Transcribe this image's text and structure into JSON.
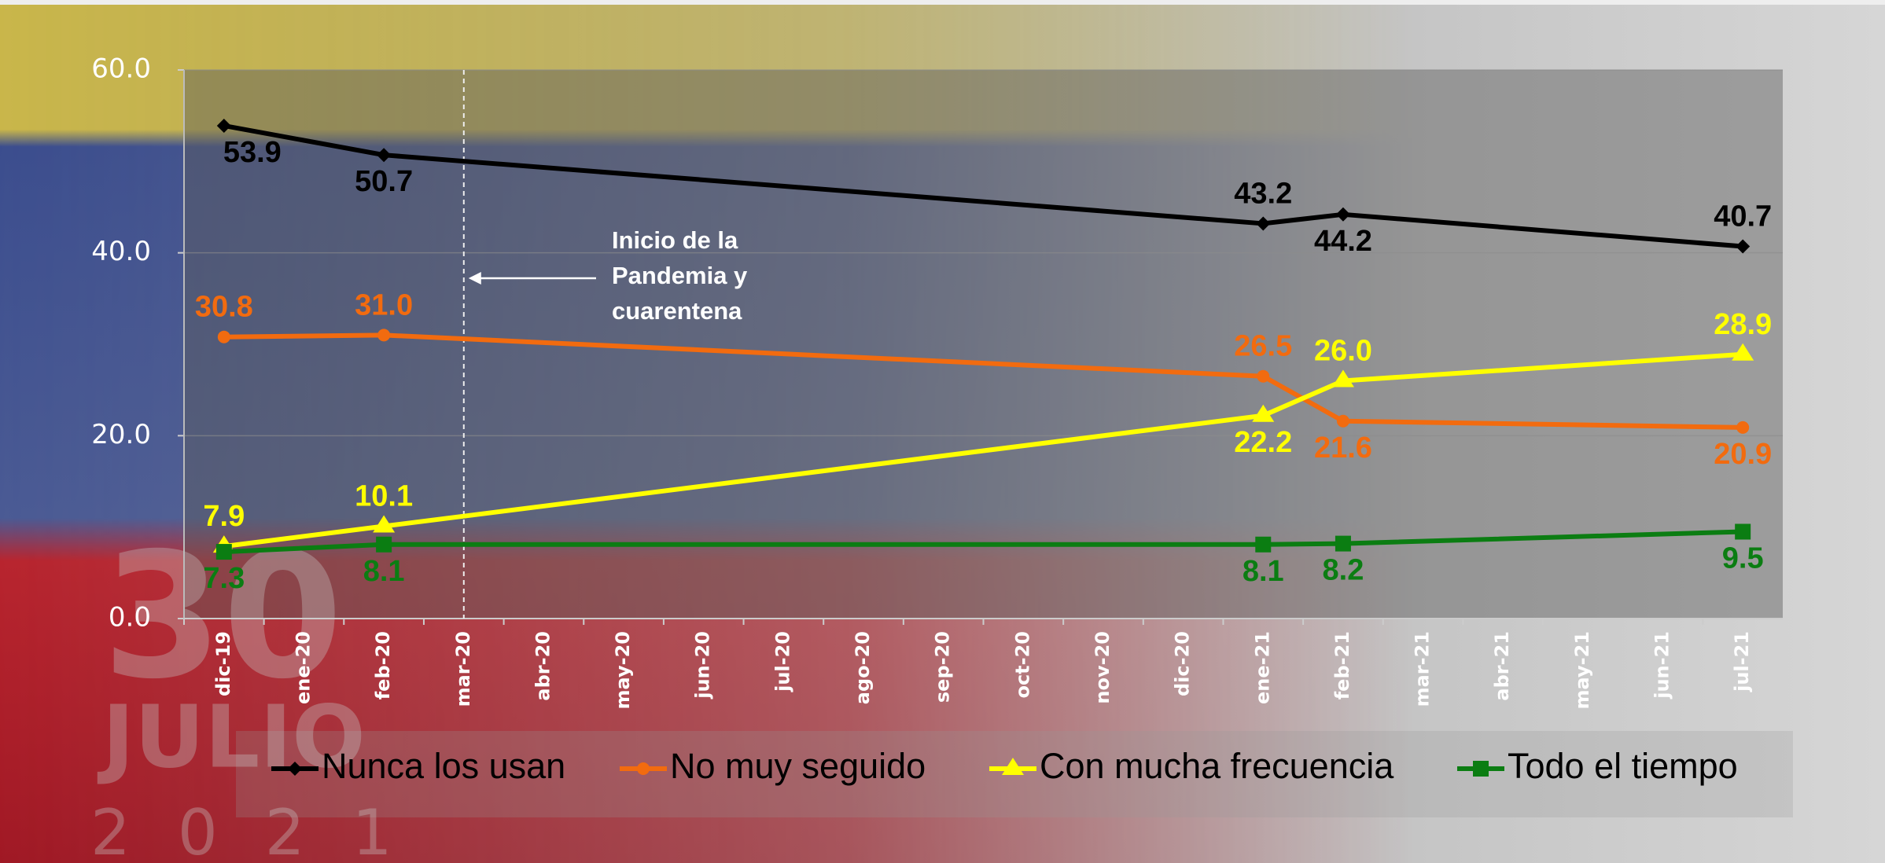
{
  "chart_data": {
    "type": "line",
    "categories": [
      "dic-19",
      "ene-20",
      "feb-20",
      "mar-20",
      "abr-20",
      "may-20",
      "jun-20",
      "jul-20",
      "ago-20",
      "sep-20",
      "oct-20",
      "nov-20",
      "dic-20",
      "ene-21",
      "feb-21",
      "mar-21",
      "abr-21",
      "may-21",
      "jun-21",
      "jul-21"
    ],
    "series": [
      {
        "name": "Nunca los usan",
        "color": "#000000",
        "values": [
          53.9,
          null,
          50.7,
          null,
          null,
          null,
          null,
          null,
          null,
          null,
          null,
          null,
          null,
          43.2,
          44.2,
          null,
          null,
          null,
          null,
          40.7
        ],
        "value_labels": [
          "53.9",
          null,
          "50.7",
          null,
          null,
          null,
          null,
          null,
          null,
          null,
          null,
          null,
          null,
          "43.2",
          "44.2",
          null,
          null,
          null,
          null,
          "40.7"
        ]
      },
      {
        "name": "No muy seguido",
        "color": "#f26b0f",
        "values": [
          30.8,
          null,
          31.0,
          null,
          null,
          null,
          null,
          null,
          null,
          null,
          null,
          null,
          null,
          26.5,
          21.6,
          null,
          null,
          null,
          null,
          20.9
        ],
        "value_labels": [
          "30.8",
          null,
          "31.0",
          null,
          null,
          null,
          null,
          null,
          null,
          null,
          null,
          null,
          null,
          "26.5",
          "21.6",
          null,
          null,
          null,
          null,
          "20.9"
        ]
      },
      {
        "name": "Con mucha frecuencia",
        "color": "#ffff00",
        "values": [
          7.9,
          null,
          10.1,
          null,
          null,
          null,
          null,
          null,
          null,
          null,
          null,
          null,
          null,
          22.2,
          26.0,
          null,
          null,
          null,
          null,
          28.9
        ],
        "value_labels": [
          "7.9",
          null,
          "10.1",
          null,
          null,
          null,
          null,
          null,
          null,
          null,
          null,
          null,
          null,
          "22.2",
          "26.0",
          null,
          null,
          null,
          null,
          "28.9"
        ]
      },
      {
        "name": "Todo el tiempo",
        "color": "#0b7d12",
        "values": [
          7.3,
          null,
          8.1,
          null,
          null,
          null,
          null,
          null,
          null,
          null,
          null,
          null,
          null,
          8.1,
          8.2,
          null,
          null,
          null,
          null,
          9.5
        ],
        "value_labels": [
          "7.3",
          null,
          "8.1",
          null,
          null,
          null,
          null,
          null,
          null,
          null,
          null,
          null,
          null,
          "8.1",
          "8.2",
          null,
          null,
          null,
          null,
          "9.5"
        ]
      }
    ],
    "ylim": [
      0,
      60
    ],
    "yticks": [
      {
        "value": 0,
        "label": "0.0"
      },
      {
        "value": 20,
        "label": "20.0"
      },
      {
        "value": 40,
        "label": "40.0"
      },
      {
        "value": 60,
        "label": "60.0"
      }
    ],
    "grid": true,
    "legend": "bottom",
    "annotation": {
      "text": [
        "Inicio de la",
        "Pandemia y",
        "cuarentena"
      ],
      "x": "mar-20"
    },
    "watermark": [
      "30",
      "JULIO",
      "2021"
    ]
  }
}
